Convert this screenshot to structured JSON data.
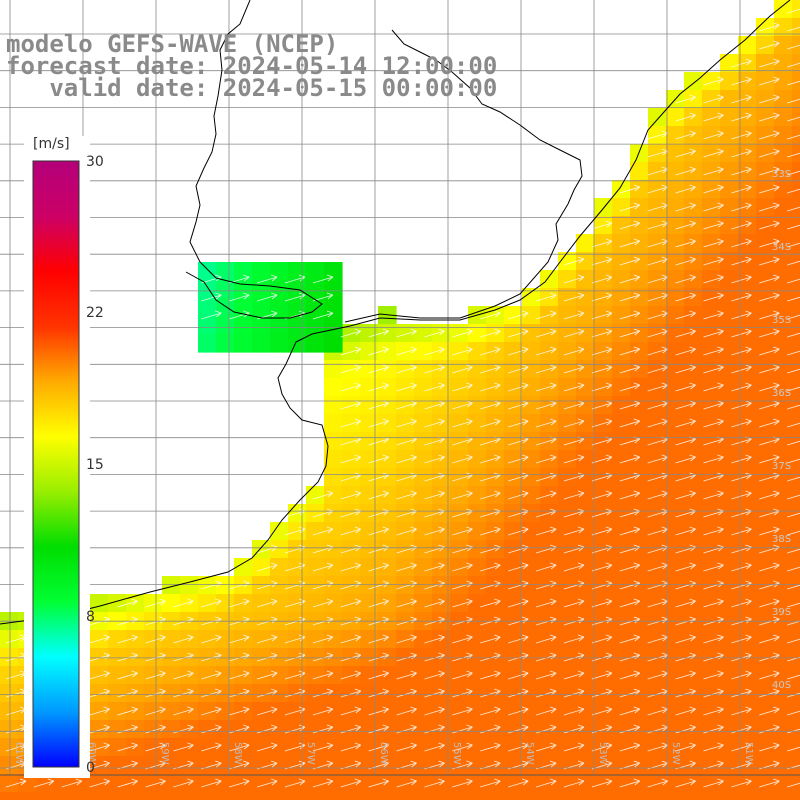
{
  "title": {
    "line1": "modelo GEFS-WAVE (NCEP)",
    "line2": "forecast date: 2024-05-14 12:00:00",
    "line3": "   valid date: 2024-05-15 00:00:00"
  },
  "colorbar": {
    "unit": "[m/s]",
    "ticks": [
      "30",
      "22",
      "15",
      "8",
      "0"
    ],
    "colors": [
      "#0000ff",
      "#0099ff",
      "#00ffff",
      "#00ff33",
      "#00dd00",
      "#99ee00",
      "#ffff00",
      "#ffaa00",
      "#ff3300",
      "#ff0000",
      "#cc0066",
      "#b4007a"
    ]
  },
  "axes": {
    "lat_labels": [
      "33S",
      "34S",
      "35S",
      "36S",
      "37S",
      "38S",
      "39S",
      "40S"
    ],
    "lon_labels": [
      "61W",
      "60W",
      "59W",
      "58W",
      "57W",
      "56W",
      "55W",
      "54W",
      "53W",
      "52W",
      "51W"
    ]
  },
  "field": {
    "variable": "wind speed",
    "direction": "from south-west to north-east"
  }
}
